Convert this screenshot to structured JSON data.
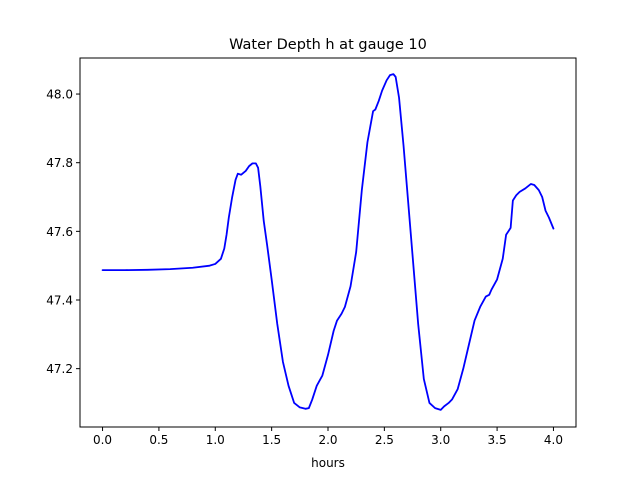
{
  "chart_data": {
    "type": "line",
    "title": "Water Depth h at gauge 10",
    "xlabel": "hours",
    "ylabel": "",
    "xlim": [
      -0.2,
      4.2
    ],
    "ylim": [
      47.03,
      48.105
    ],
    "xticks": [
      0.0,
      0.5,
      1.0,
      1.5,
      2.0,
      2.5,
      3.0,
      3.5,
      4.0
    ],
    "xtick_labels": [
      "0.0",
      "0.5",
      "1.0",
      "1.5",
      "2.0",
      "2.5",
      "3.0",
      "3.5",
      "4.0"
    ],
    "yticks": [
      47.2,
      47.4,
      47.6,
      47.8,
      48.0
    ],
    "ytick_labels": [
      "47.2",
      "47.4",
      "47.6",
      "47.8",
      "48.0"
    ],
    "grid": false,
    "series": [
      {
        "color": "#0000ff",
        "points": [
          [
            0.0,
            47.487
          ],
          [
            0.2,
            47.487
          ],
          [
            0.4,
            47.488
          ],
          [
            0.6,
            47.49
          ],
          [
            0.8,
            47.494
          ],
          [
            0.95,
            47.5
          ],
          [
            1.0,
            47.505
          ],
          [
            1.05,
            47.52
          ],
          [
            1.08,
            47.55
          ],
          [
            1.1,
            47.59
          ],
          [
            1.12,
            47.64
          ],
          [
            1.15,
            47.7
          ],
          [
            1.18,
            47.75
          ],
          [
            1.2,
            47.768
          ],
          [
            1.23,
            47.765
          ],
          [
            1.27,
            47.776
          ],
          [
            1.3,
            47.79
          ],
          [
            1.33,
            47.798
          ],
          [
            1.36,
            47.798
          ],
          [
            1.38,
            47.785
          ],
          [
            1.4,
            47.73
          ],
          [
            1.43,
            47.63
          ],
          [
            1.46,
            47.56
          ],
          [
            1.5,
            47.46
          ],
          [
            1.55,
            47.33
          ],
          [
            1.6,
            47.22
          ],
          [
            1.65,
            47.15
          ],
          [
            1.7,
            47.1
          ],
          [
            1.75,
            47.087
          ],
          [
            1.8,
            47.083
          ],
          [
            1.83,
            47.085
          ],
          [
            1.86,
            47.11
          ],
          [
            1.9,
            47.15
          ],
          [
            1.95,
            47.18
          ],
          [
            2.0,
            47.24
          ],
          [
            2.05,
            47.31
          ],
          [
            2.08,
            47.34
          ],
          [
            2.12,
            47.36
          ],
          [
            2.15,
            47.38
          ],
          [
            2.2,
            47.44
          ],
          [
            2.25,
            47.54
          ],
          [
            2.3,
            47.72
          ],
          [
            2.35,
            47.86
          ],
          [
            2.4,
            47.95
          ],
          [
            2.42,
            47.955
          ],
          [
            2.45,
            47.98
          ],
          [
            2.48,
            48.01
          ],
          [
            2.52,
            48.04
          ],
          [
            2.55,
            48.055
          ],
          [
            2.58,
            48.058
          ],
          [
            2.6,
            48.05
          ],
          [
            2.63,
            47.99
          ],
          [
            2.67,
            47.85
          ],
          [
            2.7,
            47.73
          ],
          [
            2.75,
            47.53
          ],
          [
            2.8,
            47.33
          ],
          [
            2.85,
            47.17
          ],
          [
            2.9,
            47.1
          ],
          [
            2.95,
            47.085
          ],
          [
            3.0,
            47.08
          ],
          [
            3.03,
            47.09
          ],
          [
            3.07,
            47.1
          ],
          [
            3.1,
            47.11
          ],
          [
            3.15,
            47.14
          ],
          [
            3.2,
            47.2
          ],
          [
            3.25,
            47.27
          ],
          [
            3.3,
            47.34
          ],
          [
            3.35,
            47.38
          ],
          [
            3.4,
            47.41
          ],
          [
            3.43,
            47.415
          ],
          [
            3.45,
            47.43
          ],
          [
            3.5,
            47.46
          ],
          [
            3.55,
            47.52
          ],
          [
            3.58,
            47.59
          ],
          [
            3.6,
            47.6
          ],
          [
            3.62,
            47.61
          ],
          [
            3.64,
            47.69
          ],
          [
            3.67,
            47.705
          ],
          [
            3.7,
            47.715
          ],
          [
            3.75,
            47.725
          ],
          [
            3.8,
            47.738
          ],
          [
            3.83,
            47.735
          ],
          [
            3.87,
            47.72
          ],
          [
            3.9,
            47.7
          ],
          [
            3.93,
            47.66
          ],
          [
            3.96,
            47.64
          ],
          [
            4.0,
            47.608
          ]
        ]
      }
    ]
  }
}
